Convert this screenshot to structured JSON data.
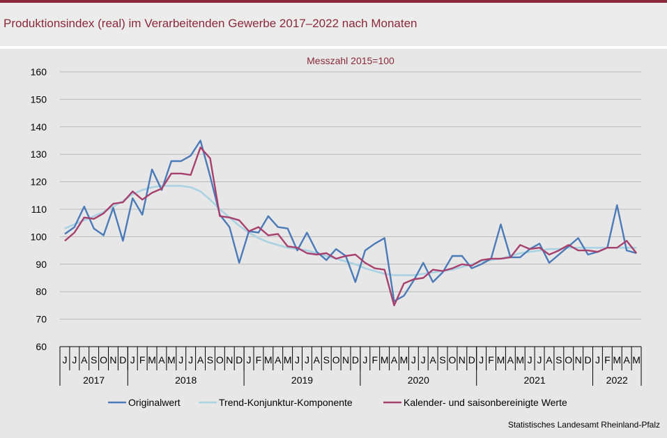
{
  "header": {
    "title": "Produktionsindex (real) im Verarbeitenden Gewerbe 2017–2022 nach Monaten"
  },
  "footer": {
    "credit": "Statistisches Landesamt  Rheinland-Pfalz"
  },
  "colors": {
    "accent": "#8b2838",
    "original": "#4a7ab8",
    "trend": "#a9d2e3",
    "adjusted": "#a8406e"
  },
  "chart_data": {
    "type": "line",
    "subtitle": "Messzahl  2015=100",
    "ylim": [
      60,
      160
    ],
    "yticks": [
      60,
      70,
      80,
      90,
      100,
      110,
      120,
      130,
      140,
      150,
      160
    ],
    "categories": [
      "J",
      "J",
      "A",
      "S",
      "O",
      "N",
      "D",
      "J",
      "F",
      "M",
      "A",
      "M",
      "J",
      "J",
      "A",
      "S",
      "O",
      "N",
      "D",
      "J",
      "F",
      "M",
      "A",
      "M",
      "J",
      "J",
      "A",
      "S",
      "O",
      "N",
      "D",
      "J",
      "F",
      "M",
      "A",
      "M",
      "J",
      "J",
      "A",
      "S",
      "O",
      "N",
      "D",
      "J",
      "F",
      "M",
      "A",
      "M",
      "J",
      "J",
      "A",
      "S",
      "O",
      "N",
      "D",
      "J",
      "F",
      "M",
      "A",
      "M"
    ],
    "years": [
      {
        "label": "2017",
        "count": 7
      },
      {
        "label": "2018",
        "count": 12
      },
      {
        "label": "2019",
        "count": 12
      },
      {
        "label": "2020",
        "count": 12
      },
      {
        "label": "2021",
        "count": 12
      },
      {
        "label": "2022",
        "count": 5
      }
    ],
    "series": [
      {
        "name": "Originalwert",
        "color": "#4a7ab8",
        "values": [
          101,
          103.5,
          111,
          103,
          100.5,
          110.5,
          98.5,
          114,
          108,
          124.5,
          117,
          127.5,
          127.5,
          129.5,
          135,
          122,
          108,
          103.5,
          90.5,
          102,
          101.5,
          107.5,
          103.5,
          103,
          95,
          101.5,
          94.5,
          91.5,
          95.5,
          93,
          83.5,
          95,
          97.5,
          99.5,
          76.5,
          78.5,
          84,
          90.5,
          83.5,
          87,
          93,
          93,
          88.5,
          90,
          92,
          104.5,
          92.5,
          92.5,
          95.5,
          97.5,
          90.5,
          93.5,
          96.5,
          99.5,
          93.5,
          94.5,
          96,
          111.5,
          95,
          94
        ]
      },
      {
        "name": "Trend-Konjunktur-Komponente",
        "color": "#a9d2e3",
        "values": [
          103,
          104.5,
          106,
          107.5,
          109,
          111,
          113,
          115.5,
          117,
          118,
          118.5,
          118.5,
          118.5,
          118,
          116.5,
          113.5,
          110,
          107,
          104,
          101.5,
          99.5,
          98,
          97,
          96,
          95.5,
          95,
          94,
          93,
          92,
          91,
          90,
          88.5,
          87.5,
          86.5,
          86,
          86,
          86,
          86.5,
          87,
          87.5,
          88,
          89,
          90,
          91,
          91.5,
          92,
          93,
          94,
          94.5,
          95,
          95.5,
          95.5,
          96,
          96,
          96,
          96,
          96,
          96,
          96,
          96
        ]
      },
      {
        "name": "Kalender- und saisonbereinigte Werte",
        "color": "#a8406e",
        "values": [
          98.5,
          101.5,
          107,
          106.5,
          108.5,
          112,
          112.5,
          116.5,
          113.5,
          116,
          117.5,
          123,
          123,
          122.5,
          132.5,
          128.5,
          107.5,
          107,
          106,
          102,
          103.5,
          100.5,
          101,
          96.5,
          96,
          94,
          93.5,
          94,
          92,
          93,
          93.5,
          90.5,
          88.5,
          88,
          75,
          83,
          84.5,
          85,
          88,
          87.5,
          88.5,
          90,
          89.5,
          91.5,
          92,
          92,
          92.5,
          97,
          95.5,
          96,
          93.5,
          95,
          97,
          95,
          95,
          94.5,
          96,
          96,
          98.5,
          94
        ]
      }
    ]
  }
}
